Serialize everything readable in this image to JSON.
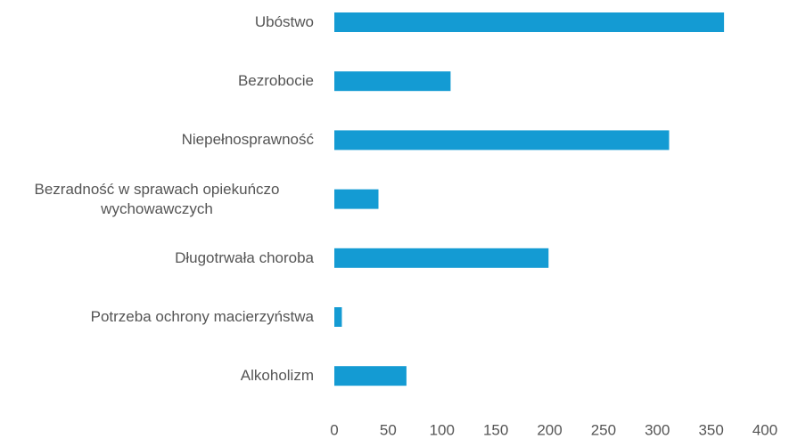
{
  "chart_data": {
    "type": "bar",
    "orientation": "horizontal",
    "categories": [
      "Ubóstwo",
      "Bezrobocie",
      "Niepełnosprawność",
      "Bezradność w sprawach opiekuńczo wychowawczych",
      "Długotrwała choroba",
      "Potrzeba ochrony macierzyństwa",
      "Alkoholizm"
    ],
    "values": [
      362,
      108,
      311,
      41,
      199,
      7,
      67
    ],
    "color": "#149bd3",
    "xlim": [
      0,
      400
    ],
    "xticks": [
      0,
      50,
      100,
      150,
      200,
      250,
      300,
      350,
      400
    ],
    "grid": false
  }
}
